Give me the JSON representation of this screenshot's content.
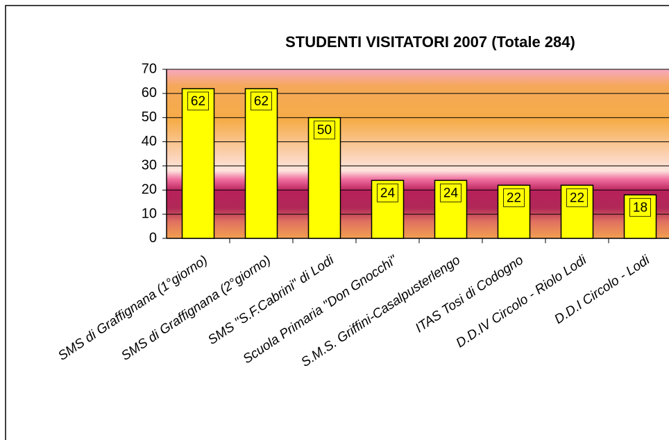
{
  "chart_data": {
    "type": "bar",
    "title": "STUDENTI VISITATORI 2007 (Totale 284)",
    "categories": [
      "SMS di Graffignana (1°giorno)",
      "SMS di Graffignana (2°giorno)",
      "SMS \"S.F.Cabrini\" di Lodi",
      "Scuola Primaria \"Don Gnocchi\"",
      "S.M.S. Griffini-Casalpusterlengo",
      "ITAS Tosi di Codogno",
      "D.D.IV Circolo - Riolo Lodi",
      "D.D.I Circolo - Lodi"
    ],
    "values": [
      62,
      62,
      50,
      24,
      24,
      22,
      22,
      18
    ],
    "color": "#ffff00",
    "ylim": [
      0,
      70
    ],
    "yticks": [
      0,
      10,
      20,
      30,
      40,
      50,
      60,
      70
    ],
    "grid": true
  }
}
